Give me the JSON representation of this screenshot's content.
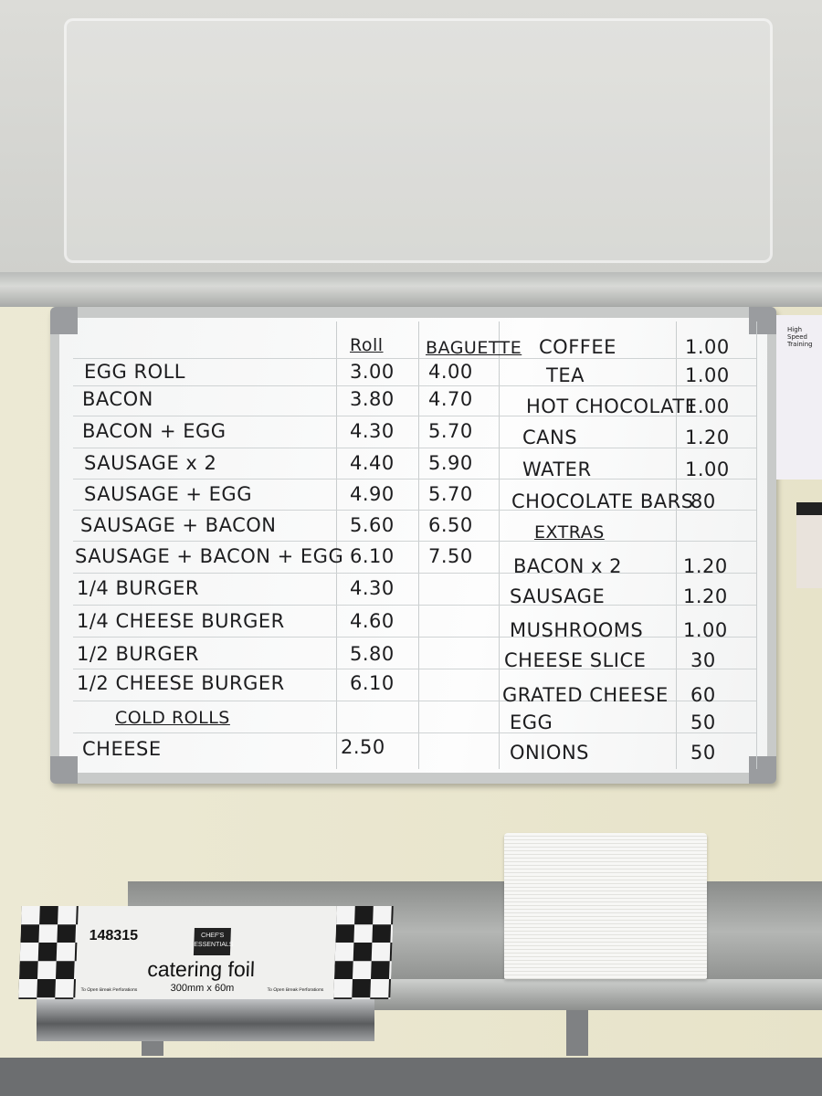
{
  "menu": {
    "headers": {
      "roll": "Roll",
      "baguette": "Baguette"
    },
    "food": [
      {
        "item": "EGG ROLL",
        "roll": "3.00",
        "baguette": "4.00"
      },
      {
        "item": "BACON",
        "roll": "3.80",
        "baguette": "4.70"
      },
      {
        "item": "BACON + EGG",
        "roll": "4.30",
        "baguette": "5.70"
      },
      {
        "item": "SAUSAGE x 2",
        "roll": "4.40",
        "baguette": "5.90"
      },
      {
        "item": "SAUSAGE + EGG",
        "roll": "4.90",
        "baguette": "5.70"
      },
      {
        "item": "SAUSAGE + BACON",
        "roll": "5.60",
        "baguette": "6.50"
      },
      {
        "item": "SAUSAGE + BACON + EGG",
        "roll": "6.10",
        "baguette": "7.50"
      },
      {
        "item": "1/4 BURGER",
        "roll": "4.30",
        "baguette": ""
      },
      {
        "item": "1/4 CHEESE BURGER",
        "roll": "4.60",
        "baguette": ""
      },
      {
        "item": "1/2 BURGER",
        "roll": "5.80",
        "baguette": ""
      },
      {
        "item": "1/2 CHEESE BURGER",
        "roll": "6.10",
        "baguette": ""
      }
    ],
    "cold_rolls_header": "COLD ROLLS",
    "cold_rolls": [
      {
        "item": "CHEESE",
        "roll": "2.50"
      }
    ],
    "drinks": [
      {
        "item": "COFFEE",
        "price": "1.00"
      },
      {
        "item": "TEA",
        "price": "1.00"
      },
      {
        "item": "HOT CHOCOLATE",
        "price": "1.00"
      },
      {
        "item": "CANS",
        "price": "1.20"
      },
      {
        "item": "WATER",
        "price": "1.00"
      },
      {
        "item": "CHOCOLATE BARS",
        "price": "80"
      }
    ],
    "extras_header": "EXTRAS",
    "extras": [
      {
        "item": "BACON x 2",
        "price": "1.20"
      },
      {
        "item": "SAUSAGE",
        "price": "1.20"
      },
      {
        "item": "MUSHROOMS",
        "price": "1.00"
      },
      {
        "item": "CHEESE SLICE",
        "price": "30"
      },
      {
        "item": "GRATED CHEESE",
        "price": "60"
      },
      {
        "item": "EGG",
        "price": "50"
      },
      {
        "item": "ONIONS",
        "price": "50"
      }
    ]
  },
  "foil_box": {
    "code": "148315",
    "product": "catering foil",
    "size": "300mm x 60m",
    "brand": "CHEF'S ESSENTIALS",
    "note": "To Open Break Perforations"
  },
  "sign": {
    "brand": "High Speed Training"
  }
}
